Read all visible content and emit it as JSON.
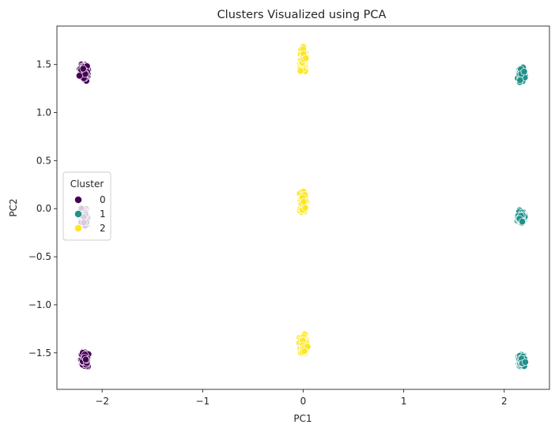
{
  "chart_data": {
    "type": "scatter",
    "title": "Clusters Visualized using PCA",
    "xlabel": "PC1",
    "ylabel": "PC2",
    "xlim": [
      -2.45,
      2.45
    ],
    "ylim": [
      -1.88,
      1.9
    ],
    "x_ticks": [
      -2,
      -1,
      0,
      1,
      2
    ],
    "x_tick_labels": [
      "−2",
      "−1",
      "0",
      "1",
      "2"
    ],
    "y_ticks": [
      -1.5,
      -1.0,
      -0.5,
      0.0,
      0.5,
      1.0,
      1.5
    ],
    "y_tick_labels": [
      "−1.5",
      "−1.0",
      "−0.5",
      "0.0",
      "0.5",
      "1.0",
      "1.5"
    ],
    "grid": false,
    "legend": {
      "title": "Cluster",
      "placement": "center-left",
      "entries": [
        {
          "label": "0",
          "color": "#440154"
        },
        {
          "label": "1",
          "color": "#21918c"
        },
        {
          "label": "2",
          "color": "#fde725"
        }
      ]
    },
    "series": [
      {
        "name": "0",
        "color": "#440154",
        "groups": [
          {
            "x": -2.18,
            "y": 1.42,
            "x_spread": 0.035,
            "y_spread": 0.07
          },
          {
            "x": -2.18,
            "y": -0.09,
            "x_spread": 0.035,
            "y_spread": 0.07
          },
          {
            "x": -2.18,
            "y": -1.57,
            "x_spread": 0.035,
            "y_spread": 0.07
          }
        ]
      },
      {
        "name": "1",
        "color": "#21918c",
        "groups": [
          {
            "x": 2.17,
            "y": 1.4,
            "x_spread": 0.03,
            "y_spread": 0.07
          },
          {
            "x": 2.17,
            "y": -0.08,
            "x_spread": 0.03,
            "y_spread": 0.07
          },
          {
            "x": 2.17,
            "y": -1.59,
            "x_spread": 0.03,
            "y_spread": 0.07
          }
        ]
      },
      {
        "name": "2",
        "color": "#fde725",
        "groups": [
          {
            "x": 0.0,
            "y": 1.55,
            "x_spread": 0.03,
            "y_spread": 0.09
          },
          {
            "x": 0.0,
            "y": 0.07,
            "x_spread": 0.03,
            "y_spread": 0.1
          },
          {
            "x": 0.0,
            "y": -1.42,
            "x_spread": 0.03,
            "y_spread": 0.09
          }
        ]
      }
    ]
  }
}
